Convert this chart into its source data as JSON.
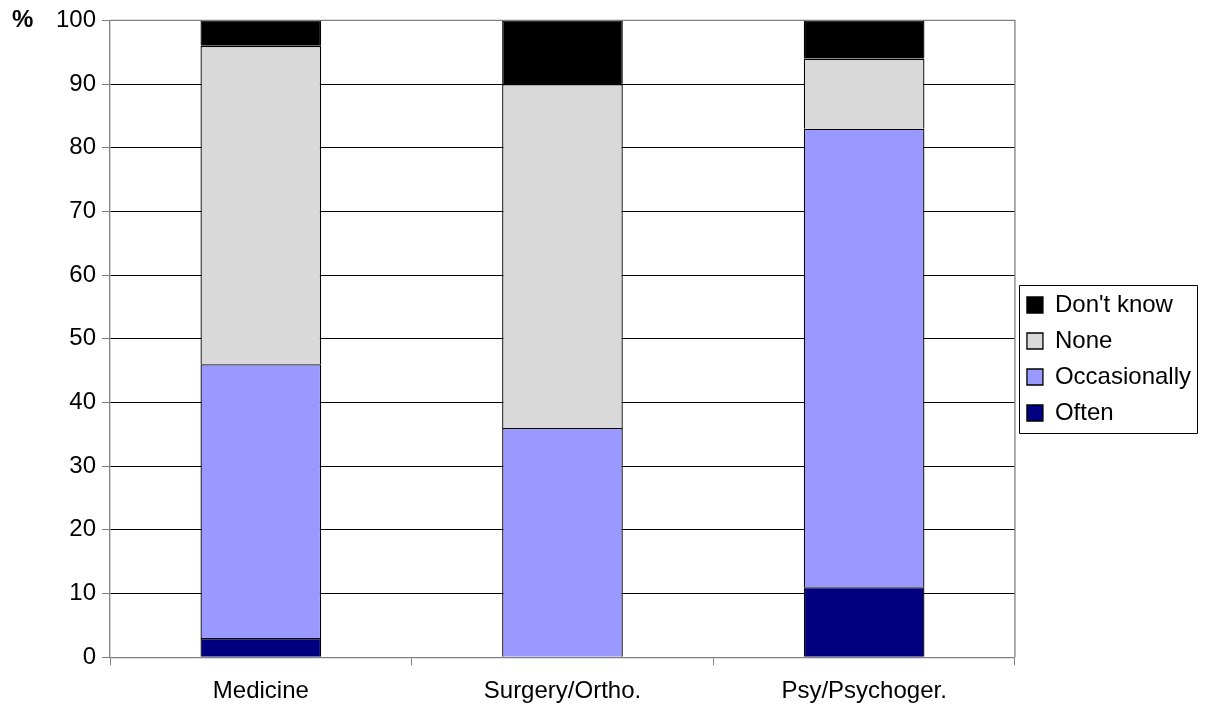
{
  "chart_data": {
    "type": "bar",
    "ylabel": "%",
    "categories": [
      "Medicine",
      "Surgery/Ortho.",
      "Psy/Psychoger."
    ],
    "stacked": true,
    "series": [
      {
        "name": "Often",
        "color": "#000080",
        "values": [
          3,
          0,
          11
        ]
      },
      {
        "name": "Occasionally",
        "color": "#9999ff",
        "values": [
          43,
          36,
          72
        ]
      },
      {
        "name": "None",
        "color": "#d9d9d9",
        "values": [
          50,
          54,
          11
        ]
      },
      {
        "name": "Don't know",
        "color": "#000000",
        "values": [
          4,
          10,
          6
        ]
      }
    ],
    "ylim": [
      0,
      100
    ],
    "yticks": [
      0,
      10,
      20,
      30,
      40,
      50,
      60,
      70,
      80,
      90,
      100
    ],
    "grid": "y",
    "legend": "right"
  }
}
